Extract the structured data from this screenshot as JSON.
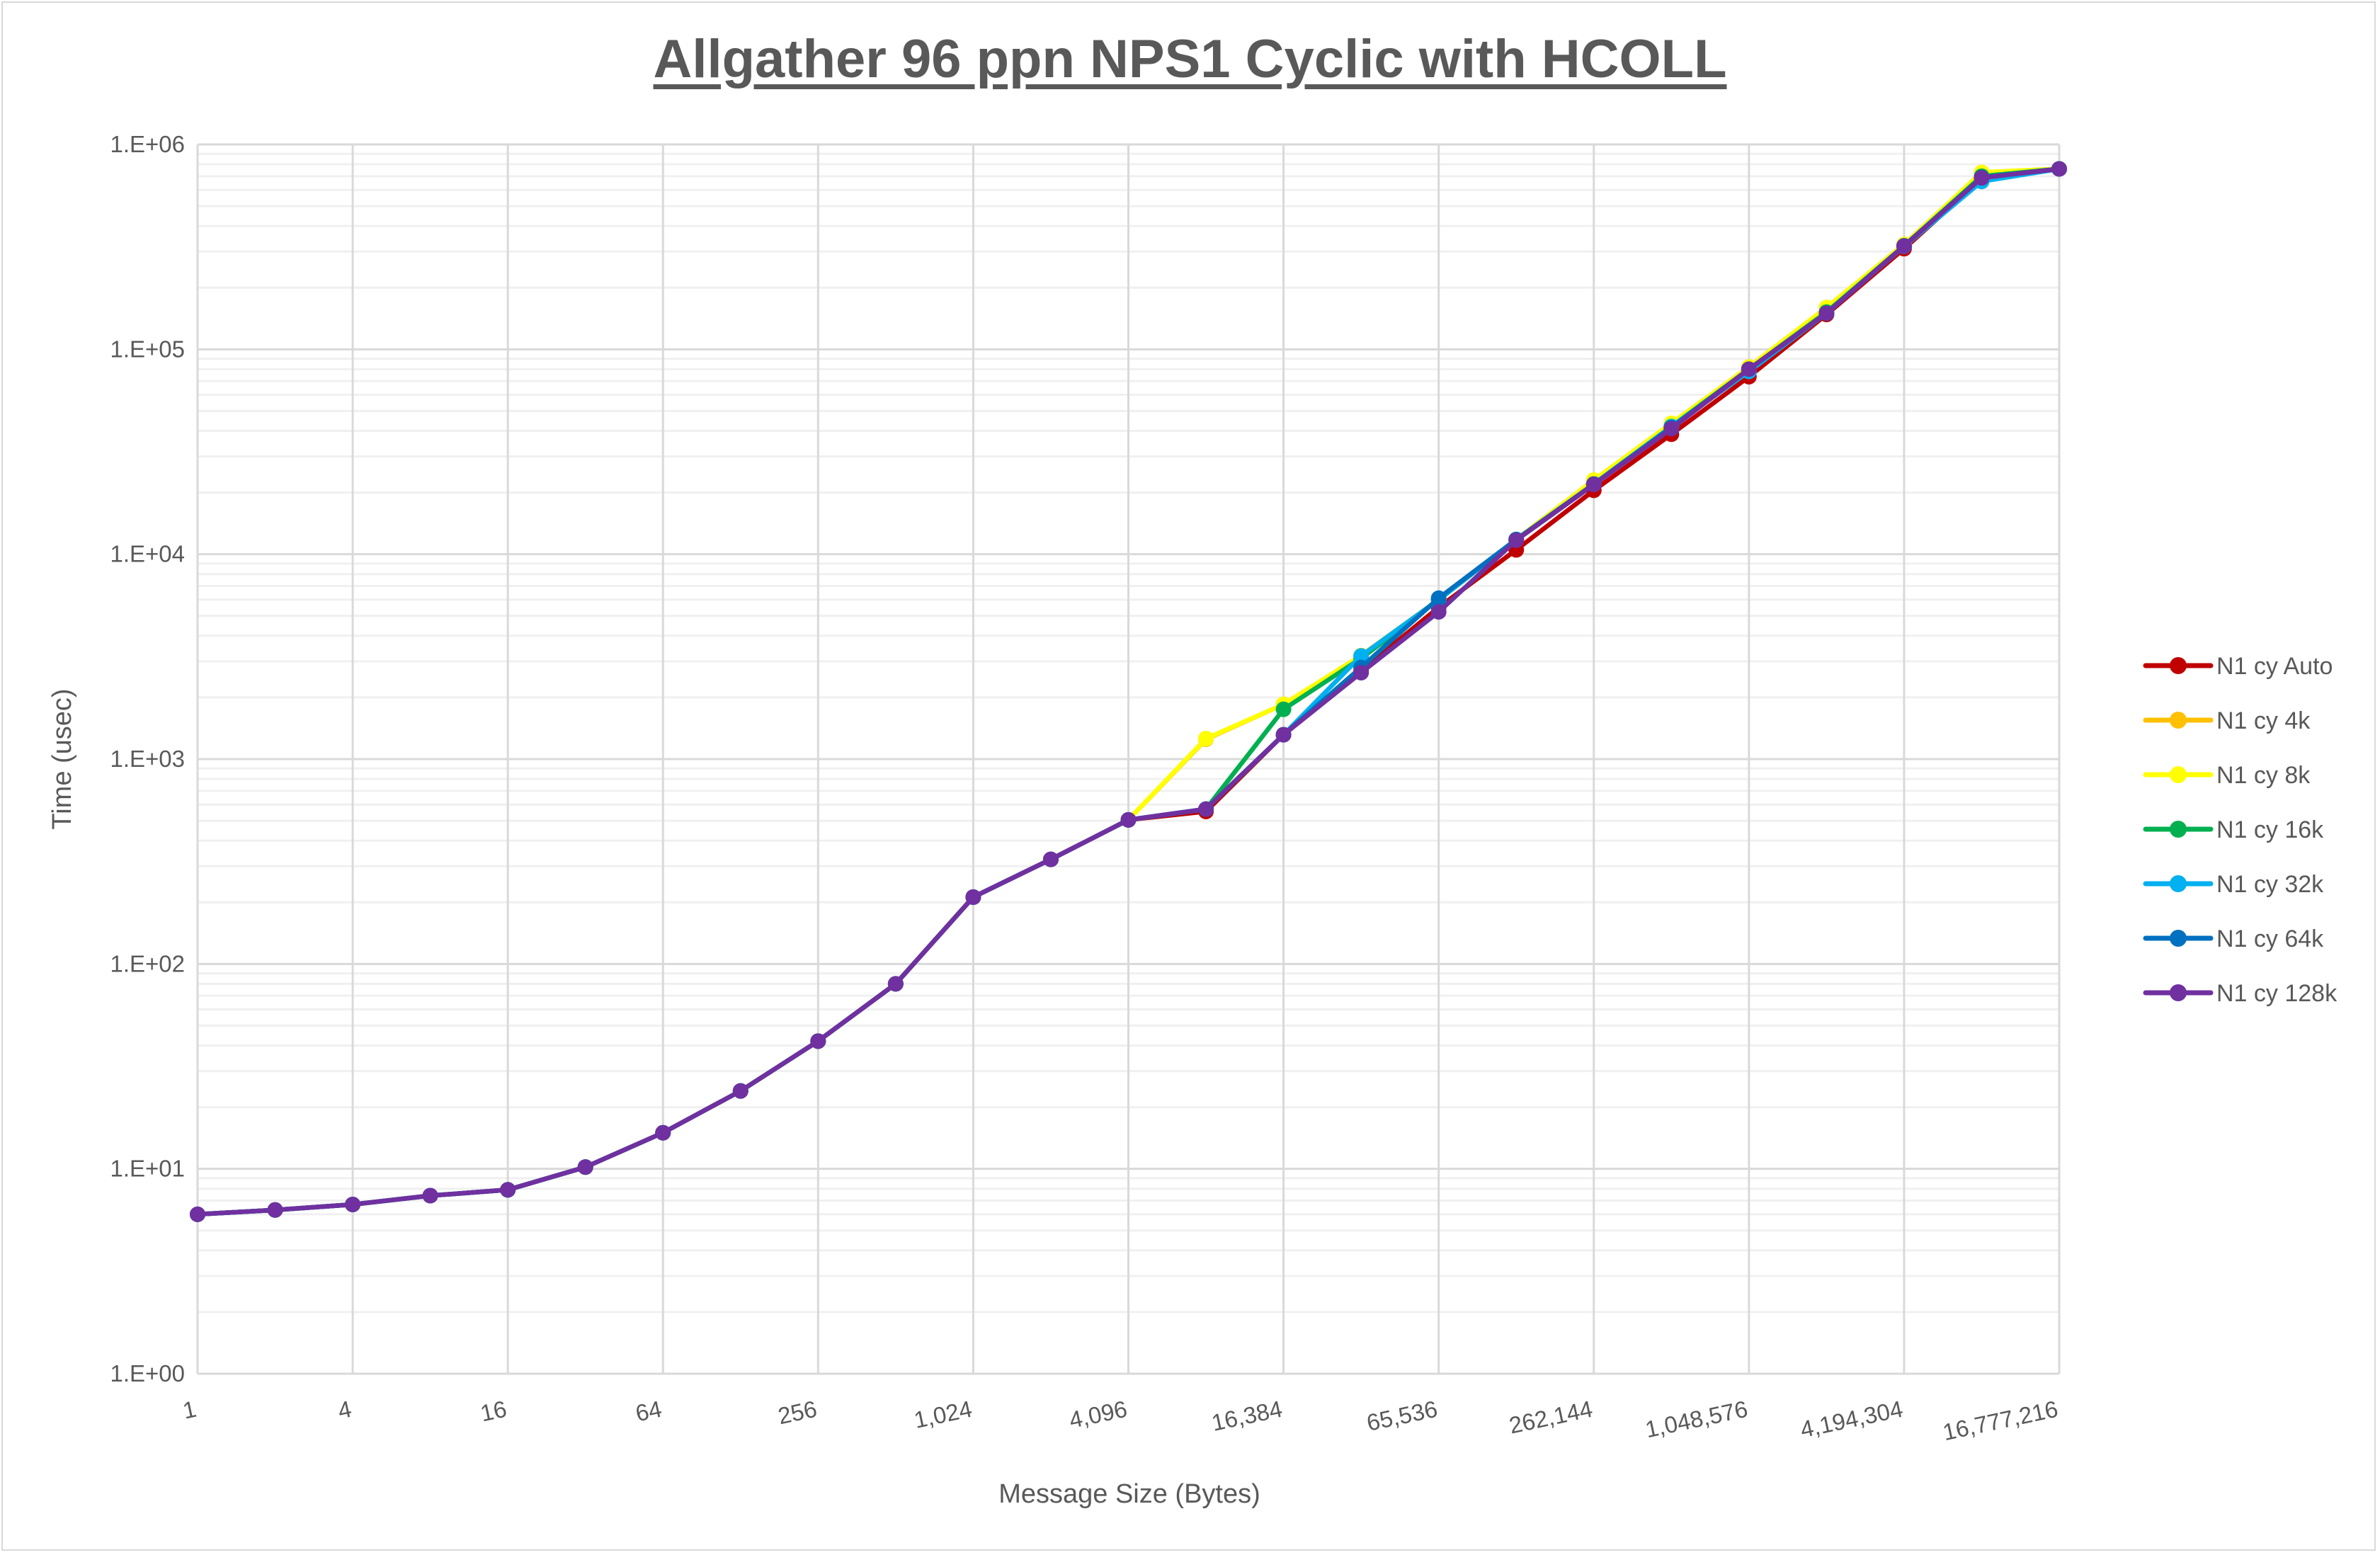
{
  "chart_data": {
    "type": "line",
    "title": "Allgather 96 ppn NPS1 Cyclic with HCOLL",
    "xlabel": "Message Size (Bytes)",
    "ylabel": "Time (usec)",
    "xscale": "log2",
    "yscale": "log10",
    "ylim": [
      1,
      1000000
    ],
    "xlim": [
      1,
      16777216
    ],
    "x": [
      1,
      2,
      4,
      8,
      16,
      32,
      64,
      128,
      256,
      512,
      1024,
      2048,
      4096,
      8192,
      16384,
      32768,
      65536,
      131072,
      262144,
      524288,
      1048576,
      2097152,
      4194304,
      8388608,
      16777216
    ],
    "x_tick_labels": [
      "1",
      "4",
      "16",
      "64",
      "256",
      "1,024",
      "4,096",
      "16,384",
      "65,536",
      "262,144",
      "1,048,576",
      "4,194,304",
      "16,777,216"
    ],
    "y_tick_labels": [
      "1.E+00",
      "1.E+01",
      "1.E+02",
      "1.E+03",
      "1.E+04",
      "1.E+05",
      "1.E+06"
    ],
    "grid": true,
    "legend_position": "right",
    "series": [
      {
        "name": "N1 cy Auto",
        "color": "#C00000",
        "values": [
          6.0,
          6.3,
          6.7,
          7.4,
          7.9,
          10.2,
          15,
          24,
          42,
          80,
          212,
          324,
          505,
          555,
          1315,
          2700,
          5500,
          10500,
          20500,
          38500,
          73500,
          148000,
          310000,
          680000,
          760000
        ]
      },
      {
        "name": "N1 cy 4k",
        "color": "#FFC000",
        "values": [
          6.0,
          6.3,
          6.7,
          7.4,
          7.9,
          10.2,
          15,
          24,
          42,
          80,
          212,
          324,
          505,
          1250,
          1850,
          3200,
          6000,
          11800,
          23000,
          43500,
          82000,
          160000,
          325000,
          730000,
          760000
        ]
      },
      {
        "name": "N1 cy 8k",
        "color": "#FFFF00",
        "values": [
          6.0,
          6.3,
          6.7,
          7.4,
          7.9,
          10.2,
          15,
          24,
          42,
          80,
          212,
          324,
          505,
          1260,
          1850,
          3200,
          6000,
          11800,
          23000,
          43500,
          82000,
          160000,
          325000,
          730000,
          760000
        ]
      },
      {
        "name": "N1 cy 16k",
        "color": "#00B050",
        "values": [
          6.0,
          6.3,
          6.7,
          7.4,
          7.9,
          10.2,
          15,
          24,
          42,
          80,
          212,
          324,
          505,
          570,
          1750,
          3100,
          6000,
          11800,
          22000,
          42000,
          80000,
          152000,
          320000,
          700000,
          760000
        ]
      },
      {
        "name": "N1 cy 32k",
        "color": "#00B0F0",
        "values": [
          6.0,
          6.3,
          6.7,
          7.4,
          7.9,
          10.2,
          15,
          24,
          42,
          80,
          212,
          324,
          505,
          570,
          1315,
          3190,
          6000,
          11800,
          22000,
          42000,
          78000,
          150000,
          318000,
          660000,
          760000
        ]
      },
      {
        "name": "N1 cy 64k",
        "color": "#0070C0",
        "values": [
          6.0,
          6.3,
          6.7,
          7.4,
          7.9,
          10.2,
          15,
          24,
          42,
          80,
          212,
          324,
          505,
          570,
          1315,
          2800,
          6100,
          11800,
          22000,
          41500,
          80000,
          150000,
          320000,
          690000,
          760000
        ]
      },
      {
        "name": "N1 cy 128k",
        "color": "#7030A0",
        "values": [
          6.0,
          6.3,
          6.7,
          7.4,
          7.9,
          10.2,
          15,
          24,
          42,
          80,
          212,
          324,
          505,
          570,
          1315,
          2640,
          5230,
          11700,
          21900,
          41000,
          80000,
          150000,
          319000,
          687000,
          760000
        ]
      }
    ]
  }
}
